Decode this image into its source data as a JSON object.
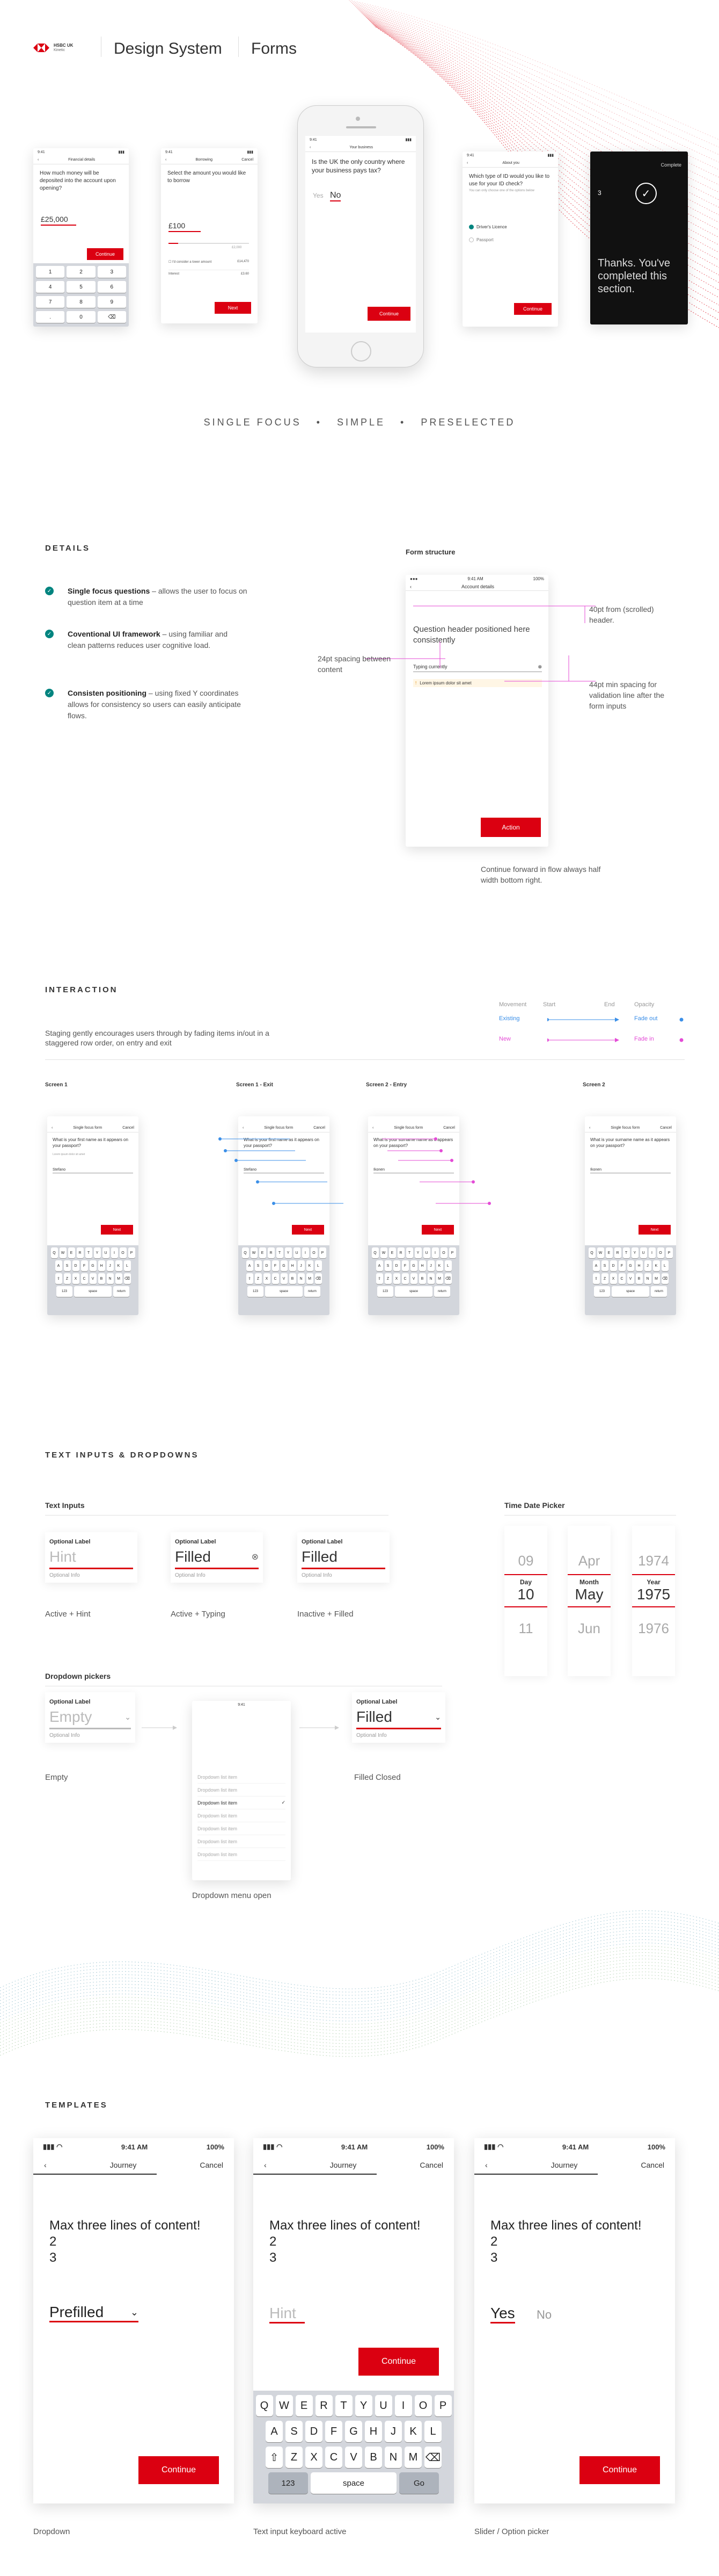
{
  "header": {
    "brand_line1": "HSBC UK",
    "brand_line2": "Kinetic",
    "title": "Design System",
    "section": "Forms"
  },
  "hero": {
    "s1": {
      "status": "9:41",
      "nav": "Financial details",
      "question": "How much money will be deposited into the account upon opening?",
      "value": "£25,000",
      "button": "Continue",
      "keys": [
        "1",
        "2",
        "3",
        "4",
        "5",
        "6",
        "7",
        "8",
        "9",
        ".",
        "0",
        "⌫"
      ]
    },
    "s2": {
      "status": "9:41",
      "nav": "Borrowing",
      "nav_right": "Cancel",
      "question": "Select the amount you would like to borrow",
      "value": "£100",
      "helper": "£2,000",
      "opt_text": "I'd consider a lower amount",
      "opt_value": "£14,470",
      "row_label": "Interest",
      "row_value": "£3.60",
      "button": "Next"
    },
    "s3": {
      "status": "9:41",
      "nav": "Your business",
      "question": "Is the UK the only country where your business pays tax?",
      "opt_yes": "Yes",
      "opt_no": "No",
      "button": "Continue"
    },
    "s4": {
      "status": "9:41",
      "nav": "About you",
      "question": "Which type of ID would you like to use for your ID check?",
      "hint": "You can only choose one of the options below",
      "opt1": "Driver's Licence",
      "opt2": "Passport",
      "button": "Continue"
    },
    "s5": {
      "top": "Complete",
      "count": "3",
      "done": "Thanks. You've completed this section."
    }
  },
  "tagline": [
    "SINGLE FOCUS",
    "•",
    "SIMPLE",
    "•",
    "PRESELECTED"
  ],
  "details": {
    "heading": "DETAILS",
    "items": [
      {
        "bold": "Single focus questions",
        "rest": " – allows the user to focus on question item at a time"
      },
      {
        "bold": "Coventional UI framework",
        "rest": " – using familiar and clean patterns reduces user cognitive load."
      },
      {
        "bold": "Consisten positioning",
        "rest": " – using fixed Y coordinates allows for consistency so users can easily anticipate flows."
      }
    ],
    "structure_title": "Form structure",
    "phone": {
      "status": "9:41 AM",
      "battery": "100%",
      "nav": "Account details",
      "header": "Question header positioned here consistently",
      "field_label": "Typing currently",
      "validation": "Lorem ipsum dolor sit amet",
      "button": "Action"
    },
    "anno_top": "40pt from (scrolled) header.",
    "anno_left": "24pt spacing between content",
    "anno_right": "44pt min spacing for validation line after the form inputs",
    "anno_bottom": "Continue forward in flow always half width bottom right."
  },
  "interaction": {
    "heading": "INTERACTION",
    "desc": "Staging gently encourages users through by fading items in/out in a staggered row order, on entry and exit",
    "legend": {
      "movement": "Movement",
      "start": "Start",
      "end": "End",
      "opacity": "Opacity",
      "existing": "Existing",
      "new": "New",
      "fade_out": "Fade out",
      "fade_in": "Fade in"
    },
    "colors": {
      "existing": "#3b8fe8",
      "new": "#e44bd6"
    },
    "screens": [
      {
        "label": "Screen 1",
        "nav": "Single focus form",
        "question": "What is your first name as it appears on your passport?",
        "hint": "Lorem ipsum dolor sit amet",
        "value": "Stefano",
        "button": "Next"
      },
      {
        "label": "Screen 1 - Exit",
        "nav": "Single focus form",
        "question": "What is your first name as it appears on your passport?",
        "value": "Stefano",
        "button": "Next"
      },
      {
        "label": "Screen 2 - Entry",
        "nav": "Single focus form",
        "question": "What is your surname name as it appears on your passport?",
        "value": "Ikonen",
        "button": "Next"
      },
      {
        "label": "Screen 2",
        "nav": "Single focus form",
        "question": "What is your surname name as it appears on your passport?",
        "value": "Ikonen",
        "button": "Next"
      }
    ],
    "kb_rows": [
      [
        "Q",
        "W",
        "E",
        "R",
        "T",
        "Y",
        "U",
        "I",
        "O",
        "P"
      ],
      [
        "A",
        "S",
        "D",
        "F",
        "G",
        "H",
        "J",
        "K",
        "L"
      ],
      [
        "⇧",
        "Z",
        "X",
        "C",
        "V",
        "B",
        "N",
        "M",
        "⌫"
      ]
    ],
    "kb_bottom": [
      "123",
      "space",
      "return"
    ]
  },
  "text_inputs": {
    "heading": "TEXT INPUTS & DROPDOWNS",
    "sub": "Text Inputs",
    "fields": [
      {
        "label": "Optional Label",
        "value": "Hint",
        "info": "Optional Info",
        "caption": "Active + Hint"
      },
      {
        "label": "Optional Label",
        "value": "Filled",
        "info": "Optional Info",
        "caption": "Active + Typing",
        "clear": "⊗"
      },
      {
        "label": "Optional Label",
        "value": "Filled",
        "info": "Optional Info",
        "caption": "Inactive + Filled"
      }
    ],
    "date_title": "Time Date Picker",
    "date": {
      "day": {
        "above": "09",
        "label": "Day",
        "value": "10",
        "below": "11"
      },
      "month": {
        "above": "Apr",
        "label": "Month",
        "value": "May",
        "below": "Jun"
      },
      "year": {
        "above": "1974",
        "label": "Year",
        "value": "1975",
        "below": "1976"
      }
    },
    "dd_sub": "Dropdown pickers",
    "dd_empty": {
      "label": "Optional Label",
      "value": "Empty",
      "info": "Optional Info",
      "caption": "Empty"
    },
    "dd_open": {
      "status": "9:41",
      "items": [
        "Dropdown list item",
        "Dropdown list item",
        "Dropdown list item",
        "Dropdown list item",
        "Dropdown list item",
        "Dropdown list item",
        "Dropdown list item"
      ],
      "caption": "Dropdown menu open",
      "check": "✓"
    },
    "dd_filled": {
      "label": "Optional Label",
      "value": "Filled",
      "info": "Optional Info",
      "caption": "Filled Closed"
    }
  },
  "templates": {
    "heading": "TEMPLATES",
    "status": {
      "time": "9:41 AM",
      "battery": "100%"
    },
    "nav": {
      "title": "Journey",
      "cancel": "Cancel"
    },
    "question": [
      "Max three lines of content!",
      "2",
      "3"
    ],
    "t1": {
      "value": "Prefilled",
      "button": "Continue",
      "caption": "Dropdown"
    },
    "t2": {
      "hint": "Hint",
      "button": "Continue",
      "caption": "Text input keyboard active",
      "rows": [
        [
          "Q",
          "W",
          "E",
          "R",
          "T",
          "Y",
          "U",
          "I",
          "O",
          "P"
        ],
        [
          "A",
          "S",
          "D",
          "F",
          "G",
          "H",
          "J",
          "K",
          "L"
        ],
        [
          "⇧",
          "Z",
          "X",
          "C",
          "V",
          "B",
          "N",
          "M",
          "⌫"
        ]
      ],
      "k123": "123",
      "space": "space",
      "go": "Go"
    },
    "t3": {
      "yes": "Yes",
      "no": "No",
      "button": "Continue",
      "caption": "Slider / Option picker"
    }
  }
}
